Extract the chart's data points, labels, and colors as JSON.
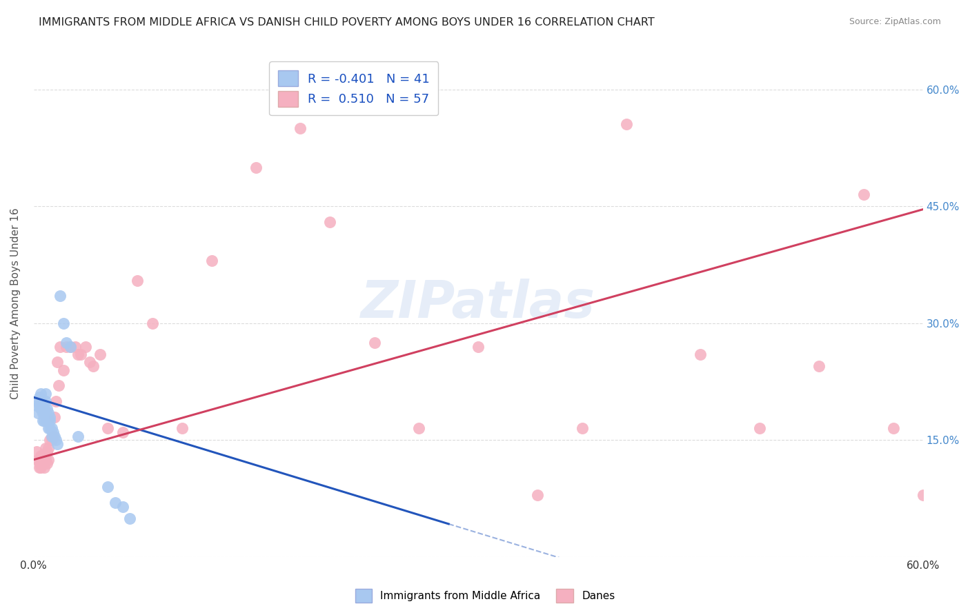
{
  "title": "IMMIGRANTS FROM MIDDLE AFRICA VS DANISH CHILD POVERTY AMONG BOYS UNDER 16 CORRELATION CHART",
  "source": "Source: ZipAtlas.com",
  "ylabel": "Child Poverty Among Boys Under 16",
  "xmin": 0.0,
  "xmax": 0.6,
  "ymin": 0.0,
  "ymax": 0.65,
  "ytick_values": [
    0.0,
    0.15,
    0.3,
    0.45,
    0.6
  ],
  "ytick_right_labels": [
    "",
    "15.0%",
    "30.0%",
    "45.0%",
    "60.0%"
  ],
  "xtick_values": [
    0.0,
    0.1,
    0.2,
    0.3,
    0.4,
    0.5,
    0.6
  ],
  "xtick_labels": [
    "0.0%",
    "",
    "",
    "",
    "",
    "",
    "60.0%"
  ],
  "blue_R": "-0.401",
  "blue_N": "41",
  "pink_R": "0.510",
  "pink_N": "57",
  "blue_scatter_color": "#a8c8f0",
  "pink_scatter_color": "#f5b0c0",
  "blue_line_color": "#2255bb",
  "pink_line_color": "#d04060",
  "watermark": "ZIPatlas",
  "blue_line_intercept": 0.205,
  "blue_line_slope": -0.58,
  "blue_line_solid_end": 0.28,
  "blue_line_dashed_end": 0.42,
  "pink_line_intercept": 0.125,
  "pink_line_slope": 0.535,
  "blue_scatter_x": [
    0.002,
    0.003,
    0.003,
    0.004,
    0.004,
    0.005,
    0.005,
    0.005,
    0.006,
    0.006,
    0.006,
    0.007,
    0.007,
    0.007,
    0.008,
    0.008,
    0.008,
    0.009,
    0.009,
    0.009,
    0.01,
    0.01,
    0.01,
    0.011,
    0.011,
    0.011,
    0.012,
    0.012,
    0.013,
    0.014,
    0.015,
    0.016,
    0.018,
    0.02,
    0.022,
    0.025,
    0.03,
    0.05,
    0.055,
    0.06,
    0.065
  ],
  "blue_scatter_y": [
    0.195,
    0.2,
    0.185,
    0.195,
    0.205,
    0.19,
    0.2,
    0.21,
    0.195,
    0.185,
    0.175,
    0.19,
    0.185,
    0.175,
    0.21,
    0.2,
    0.185,
    0.19,
    0.18,
    0.175,
    0.185,
    0.175,
    0.165,
    0.165,
    0.175,
    0.18,
    0.165,
    0.155,
    0.16,
    0.155,
    0.15,
    0.145,
    0.335,
    0.3,
    0.275,
    0.27,
    0.155,
    0.09,
    0.07,
    0.065,
    0.05
  ],
  "pink_scatter_x": [
    0.002,
    0.003,
    0.004,
    0.004,
    0.005,
    0.005,
    0.005,
    0.006,
    0.006,
    0.007,
    0.007,
    0.008,
    0.008,
    0.008,
    0.009,
    0.009,
    0.01,
    0.01,
    0.011,
    0.012,
    0.013,
    0.014,
    0.015,
    0.016,
    0.017,
    0.018,
    0.02,
    0.022,
    0.025,
    0.028,
    0.03,
    0.032,
    0.035,
    0.038,
    0.04,
    0.045,
    0.05,
    0.06,
    0.07,
    0.08,
    0.1,
    0.12,
    0.15,
    0.18,
    0.2,
    0.23,
    0.26,
    0.3,
    0.34,
    0.37,
    0.4,
    0.45,
    0.49,
    0.53,
    0.56,
    0.58,
    0.6
  ],
  "pink_scatter_y": [
    0.135,
    0.125,
    0.12,
    0.115,
    0.13,
    0.12,
    0.115,
    0.13,
    0.125,
    0.12,
    0.115,
    0.13,
    0.14,
    0.125,
    0.12,
    0.135,
    0.14,
    0.125,
    0.15,
    0.15,
    0.155,
    0.18,
    0.2,
    0.25,
    0.22,
    0.27,
    0.24,
    0.27,
    0.27,
    0.27,
    0.26,
    0.26,
    0.27,
    0.25,
    0.245,
    0.26,
    0.165,
    0.16,
    0.355,
    0.3,
    0.165,
    0.38,
    0.5,
    0.55,
    0.43,
    0.275,
    0.165,
    0.27,
    0.08,
    0.165,
    0.555,
    0.26,
    0.165,
    0.245,
    0.465,
    0.165,
    0.08
  ]
}
